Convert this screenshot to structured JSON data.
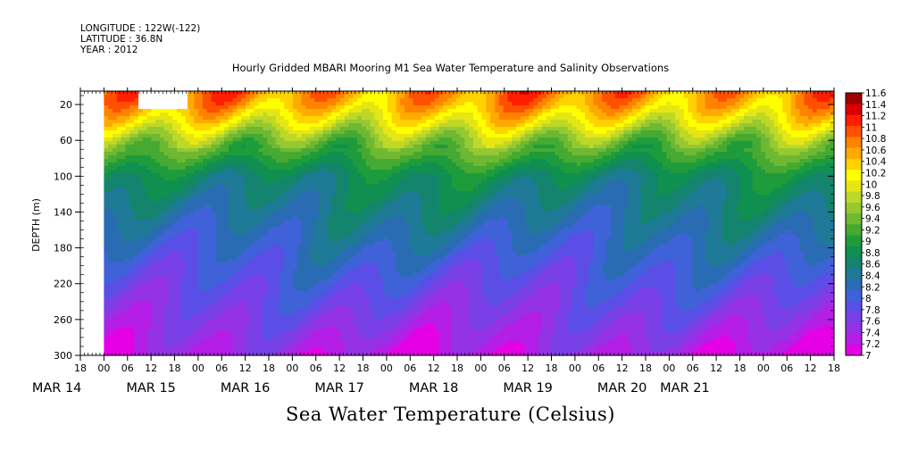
{
  "header": {
    "longitude": "LONGITUDE : 122W(-122)",
    "latitude": "LATITUDE : 36.8N",
    "year": "YEAR : 2012"
  },
  "title": "Hourly Gridded MBARI Mooring M1 Sea Water Temperature and Salinity Observations",
  "colorbar_title": "Sea Water Temperature (Celsius)",
  "chart_data": {
    "type": "heatmap",
    "title": "Hourly Gridded MBARI Mooring M1 Sea Water Temperature and Salinity Observations",
    "ylabel": "DEPTH (m)",
    "ylim": [
      300,
      5
    ],
    "yticks": [
      "20",
      "60",
      "100",
      "140",
      "180",
      "220",
      "260",
      "300"
    ],
    "xticks": [
      "18",
      "00",
      "06",
      "12",
      "18",
      "00",
      "06",
      "12",
      "18",
      "00",
      "06",
      "12",
      "18",
      "00",
      "06",
      "12",
      "18",
      "00",
      "06",
      "12",
      "18",
      "00",
      "06",
      "12",
      "18",
      "00",
      "06",
      "12",
      "18",
      "00",
      "06",
      "12",
      "18"
    ],
    "date_labels": [
      "MAR 14",
      "MAR 15",
      "MAR 16",
      "MAR 17",
      "MAR 18",
      "MAR 19",
      "MAR 20",
      "MAR 21"
    ],
    "x_range": [
      "2012-03-14 18:00",
      "2012-03-22 18:00"
    ],
    "data_start": "2012-03-15 00:00",
    "colorbar": {
      "label": "Sea Water Temperature (Celsius)",
      "levels": [
        "7",
        "7.2",
        "7.4",
        "7.6",
        "7.8",
        "8",
        "8.2",
        "8.4",
        "8.6",
        "8.8",
        "9",
        "9.2",
        "9.4",
        "9.6",
        "9.8",
        "10",
        "10.2",
        "10.4",
        "10.6",
        "10.8",
        "11",
        "11.2",
        "11.4",
        "11.6"
      ],
      "colors": [
        "#e600e6",
        "#b41ee6",
        "#9632e6",
        "#7840e6",
        "#5a4ee6",
        "#4062d8",
        "#2a6cb4",
        "#1e7a96",
        "#14846e",
        "#109050",
        "#1e9c3c",
        "#46aa32",
        "#6eb832",
        "#96c832",
        "#bed828",
        "#e6e614",
        "#ffff00",
        "#ffd200",
        "#ffaa00",
        "#ff8200",
        "#ff5000",
        "#ff1e00",
        "#dc0000",
        "#a00000"
      ]
    },
    "depth_profile": [
      {
        "depth": 5,
        "temp": 10.9
      },
      {
        "depth": 20,
        "temp": 10.7
      },
      {
        "depth": 40,
        "temp": 10.2
      },
      {
        "depth": 60,
        "temp": 9.6
      },
      {
        "depth": 80,
        "temp": 9.2
      },
      {
        "depth": 100,
        "temp": 8.8
      },
      {
        "depth": 140,
        "temp": 8.5
      },
      {
        "depth": 180,
        "temp": 8.2
      },
      {
        "depth": 220,
        "temp": 7.9
      },
      {
        "depth": 260,
        "temp": 7.6
      },
      {
        "depth": 300,
        "temp": 7.3
      }
    ]
  }
}
